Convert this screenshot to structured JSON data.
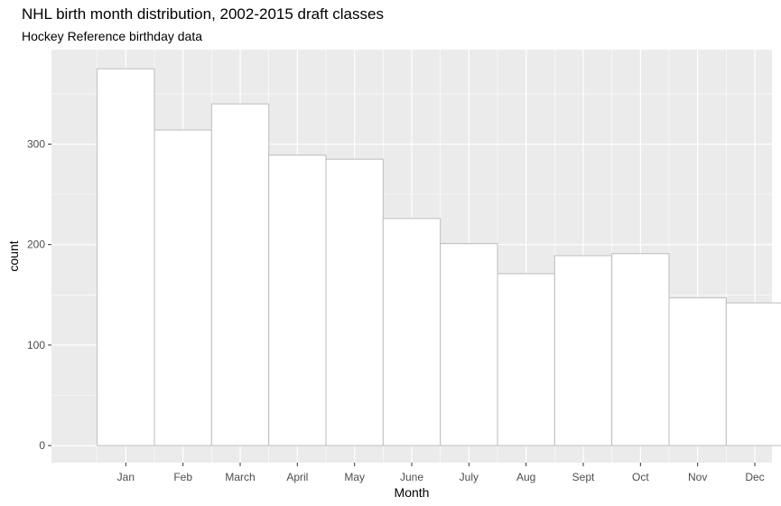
{
  "chart_data": {
    "type": "bar",
    "title": "NHL birth month distribution, 2002-2015 draft classes",
    "subtitle": "Hockey Reference birthday data",
    "xlabel": "Month",
    "ylabel": "count",
    "categories": [
      "Jan",
      "Feb",
      "March",
      "April",
      "May",
      "June",
      "July",
      "Aug",
      "Sept",
      "Oct",
      "Nov",
      "Dec"
    ],
    "values": [
      375,
      314,
      340,
      289,
      285,
      226,
      201,
      171,
      189,
      191,
      147,
      142
    ],
    "ylim": [
      -17,
      394
    ],
    "yticks": [
      0,
      100,
      200,
      300
    ],
    "grid": true,
    "colors": {
      "panel_bg": "#ebebeb",
      "grid_major": "#ffffff",
      "bar_fill": "#ffffff",
      "bar_stroke": "#bdbdbd"
    }
  }
}
